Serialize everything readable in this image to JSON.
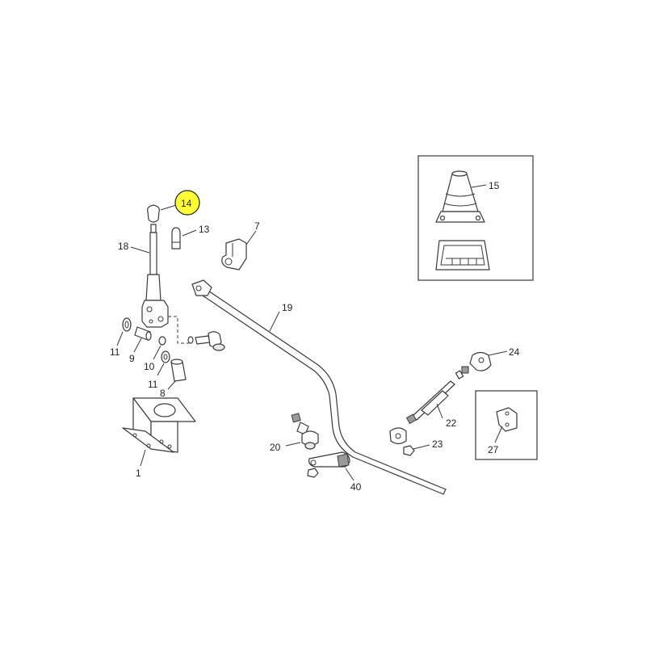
{
  "highlight_color": "#ffff33",
  "callouts": {
    "c14": "14",
    "c13": "13",
    "c18": "18",
    "c7": "7",
    "c15": "15",
    "c19": "19",
    "c24": "24",
    "c11a": "11",
    "c9": "9",
    "c10": "10",
    "c11b": "11",
    "c8": "8",
    "c22": "22",
    "c1": "1",
    "c27": "27",
    "c20": "20",
    "c23": "23",
    "c40": "40"
  },
  "highlighted_part": "14"
}
